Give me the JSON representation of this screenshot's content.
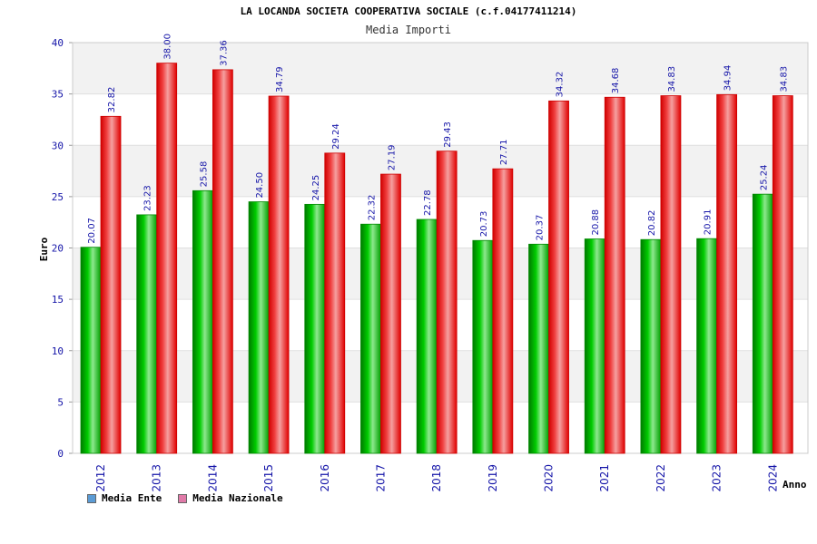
{
  "header": {
    "title": "LA LOCANDA SOCIETA COOPERATIVA SOCIALE (c.f.04177411214)",
    "subtitle": "Media Importi"
  },
  "legend": {
    "items": [
      {
        "label": "Media Ente",
        "color": "#5b9bd5"
      },
      {
        "label": "Media Nazionale",
        "color": "#e07aa8"
      }
    ]
  },
  "colors": {
    "ente": "#00bb00",
    "nazionale": "#ee1111",
    "band": "#f2f2f2",
    "axis_text": "#1515a8"
  },
  "chart_data": {
    "type": "bar",
    "title": "Media Importi",
    "xlabel": "Anno",
    "ylabel": "Euro",
    "ylim": [
      0,
      40
    ],
    "yticks": [
      0,
      5,
      10,
      15,
      20,
      25,
      30,
      35,
      40
    ],
    "categories": [
      "2012",
      "2013",
      "2014",
      "2015",
      "2016",
      "2017",
      "2018",
      "2019",
      "2020",
      "2021",
      "2022",
      "2023",
      "2024"
    ],
    "series": [
      {
        "name": "Media Ente",
        "values": [
          20.07,
          23.23,
          25.58,
          24.5,
          24.25,
          22.32,
          22.78,
          20.73,
          20.37,
          20.88,
          20.82,
          20.91,
          25.24
        ]
      },
      {
        "name": "Media Nazionale",
        "values": [
          32.82,
          38.0,
          37.36,
          34.79,
          29.24,
          27.19,
          29.43,
          27.71,
          34.32,
          34.68,
          34.83,
          34.94,
          34.83
        ]
      }
    ],
    "grid": true,
    "legend_position": "bottom-left"
  }
}
